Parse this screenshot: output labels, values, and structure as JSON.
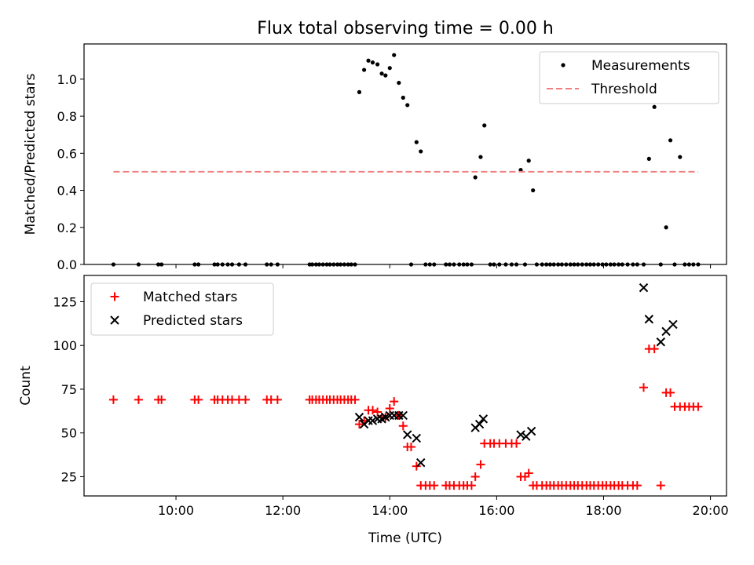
{
  "chart_data": [
    {
      "type": "scatter",
      "title": "Flux total observing time = 0.00 h",
      "xlabel": "",
      "ylabel": "Matched/Predicted stars",
      "xlim": [
        8.28,
        20.3
      ],
      "ylim": [
        0.0,
        1.19
      ],
      "yticks": [
        0.0,
        0.2,
        0.4,
        0.6,
        0.8,
        1.0
      ],
      "ytick_labels": [
        "0.0",
        "0.2",
        "0.4",
        "0.6",
        "0.8",
        "1.0"
      ],
      "xticks": [
        10,
        12,
        14,
        16,
        18,
        20
      ],
      "xtick_labels": [],
      "legend_position": "top-right",
      "series": [
        {
          "name": "Measurements",
          "kind": "points",
          "color": "#000000",
          "x": [
            8.83,
            9.3,
            9.67,
            9.73,
            10.35,
            10.42,
            10.72,
            10.78,
            10.87,
            10.97,
            11.05,
            11.18,
            11.3,
            11.7,
            11.78,
            11.9,
            12.5,
            12.55,
            12.62,
            12.68,
            12.75,
            12.82,
            12.88,
            12.95,
            13.02,
            13.08,
            13.15,
            13.22,
            13.28,
            13.35,
            13.43,
            13.52,
            13.6,
            13.68,
            13.77,
            13.85,
            13.92,
            14.0,
            14.08,
            14.17,
            14.25,
            14.33,
            14.4,
            14.5,
            14.58,
            14.67,
            14.75,
            14.83,
            15.05,
            15.12,
            15.2,
            15.3,
            15.38,
            15.45,
            15.53,
            15.6,
            15.7,
            15.77,
            15.88,
            15.95,
            16.05,
            16.17,
            16.28,
            16.37,
            16.45,
            16.53,
            16.6,
            16.68,
            16.75,
            16.85,
            16.93,
            17.0,
            17.07,
            17.15,
            17.22,
            17.3,
            17.38,
            17.45,
            17.52,
            17.6,
            17.68,
            17.75,
            17.82,
            17.9,
            17.98,
            18.05,
            18.13,
            18.2,
            18.28,
            18.35,
            18.45,
            18.55,
            18.63,
            18.75,
            18.85,
            18.95,
            19.07,
            19.17,
            19.25,
            19.33,
            19.43,
            19.52,
            19.6,
            19.68,
            19.77
          ],
          "y": [
            0,
            0,
            0,
            0,
            0,
            0,
            0,
            0,
            0,
            0,
            0,
            0,
            0,
            0,
            0,
            0,
            0,
            0,
            0,
            0,
            0,
            0,
            0,
            0,
            0,
            0,
            0,
            0,
            0,
            0,
            0.93,
            1.05,
            1.1,
            1.09,
            1.08,
            1.03,
            1.02,
            1.06,
            1.13,
            0.98,
            0.9,
            0.86,
            0,
            0.66,
            0.61,
            0,
            0,
            0,
            0,
            0,
            0,
            0,
            0,
            0,
            0,
            0.47,
            0.58,
            0.75,
            0,
            0,
            0,
            0,
            0,
            0,
            0.51,
            0,
            0.56,
            0.4,
            0,
            0,
            0,
            0,
            0,
            0,
            0,
            0,
            0,
            0,
            0,
            0,
            0,
            0,
            0,
            0,
            0,
            0,
            0,
            0,
            0,
            0,
            0,
            0,
            0,
            0,
            0.57,
            0.85,
            0,
            0.2,
            0.67,
            0,
            0.58,
            0,
            0,
            0,
            0
          ]
        },
        {
          "name": "Threshold",
          "kind": "dashed-line",
          "color": "#f08080",
          "x": [
            8.83,
            19.77
          ],
          "y": [
            0.5,
            0.5
          ]
        }
      ]
    },
    {
      "type": "scatter",
      "title": "",
      "xlabel": "Time (UTC)",
      "ylabel": "Count",
      "xlim": [
        8.28,
        20.3
      ],
      "ylim": [
        14,
        140
      ],
      "yticks": [
        25,
        50,
        75,
        100,
        125
      ],
      "ytick_labels": [
        "25",
        "50",
        "75",
        "100",
        "125"
      ],
      "xticks": [
        10,
        12,
        14,
        16,
        18,
        20
      ],
      "xtick_labels": [
        "10:00",
        "12:00",
        "14:00",
        "16:00",
        "18:00",
        "20:00"
      ],
      "legend_position": "top-left",
      "series": [
        {
          "name": "Matched stars",
          "kind": "plus",
          "color": "#ff0000",
          "x": [
            8.83,
            9.3,
            9.67,
            9.73,
            10.35,
            10.42,
            10.72,
            10.78,
            10.87,
            10.97,
            11.05,
            11.18,
            11.3,
            11.7,
            11.78,
            11.9,
            12.5,
            12.55,
            12.62,
            12.68,
            12.75,
            12.82,
            12.88,
            12.95,
            13.02,
            13.08,
            13.15,
            13.22,
            13.28,
            13.35,
            13.43,
            13.52,
            13.6,
            13.68,
            13.77,
            13.85,
            13.92,
            14.0,
            14.08,
            14.17,
            14.25,
            14.33,
            14.4,
            14.5,
            14.58,
            14.67,
            14.75,
            14.83,
            15.05,
            15.12,
            15.2,
            15.3,
            15.38,
            15.45,
            15.53,
            15.6,
            15.7,
            15.77,
            15.88,
            15.95,
            16.05,
            16.17,
            16.28,
            16.37,
            16.45,
            16.53,
            16.6,
            16.68,
            16.75,
            16.85,
            16.93,
            17.0,
            17.07,
            17.15,
            17.22,
            17.3,
            17.38,
            17.45,
            17.52,
            17.6,
            17.68,
            17.75,
            17.82,
            17.9,
            17.98,
            18.05,
            18.13,
            18.2,
            18.28,
            18.35,
            18.45,
            18.55,
            18.63,
            18.75,
            18.85,
            18.95,
            19.07,
            19.17,
            19.25,
            19.33,
            19.43,
            19.52,
            19.6,
            19.68,
            19.77
          ],
          "y": [
            69,
            69,
            69,
            69,
            69,
            69,
            69,
            69,
            69,
            69,
            69,
            69,
            69,
            69,
            69,
            69,
            69,
            69,
            69,
            69,
            69,
            69,
            69,
            69,
            69,
            69,
            69,
            69,
            69,
            69,
            55,
            57,
            63,
            63,
            62,
            59,
            59,
            64,
            68,
            60,
            54,
            42,
            42,
            31,
            20,
            20,
            20,
            20,
            20,
            20,
            20,
            20,
            20,
            20,
            20,
            25,
            32,
            44,
            44,
            44,
            44,
            44,
            44,
            44,
            25,
            25,
            27,
            20,
            20,
            20,
            20,
            20,
            20,
            20,
            20,
            20,
            20,
            20,
            20,
            20,
            20,
            20,
            20,
            20,
            20,
            20,
            20,
            20,
            20,
            20,
            20,
            20,
            20,
            76,
            98,
            98,
            20,
            73,
            73,
            65,
            65,
            65,
            65,
            65,
            65
          ]
        },
        {
          "name": "Predicted stars",
          "kind": "cross",
          "color": "#000000",
          "x": [
            13.43,
            13.52,
            13.6,
            13.68,
            13.77,
            13.85,
            13.92,
            14.0,
            14.08,
            14.17,
            14.25,
            14.33,
            14.5,
            14.58,
            15.6,
            15.68,
            15.75,
            16.45,
            16.55,
            16.65,
            18.75,
            18.85,
            19.07,
            19.17,
            19.3
          ],
          "y": [
            59,
            55,
            57,
            57,
            58,
            58,
            59,
            60,
            60,
            60,
            60,
            49,
            47,
            33,
            53,
            55,
            58,
            49,
            48,
            51,
            133,
            115,
            102,
            108,
            112
          ]
        }
      ]
    }
  ]
}
